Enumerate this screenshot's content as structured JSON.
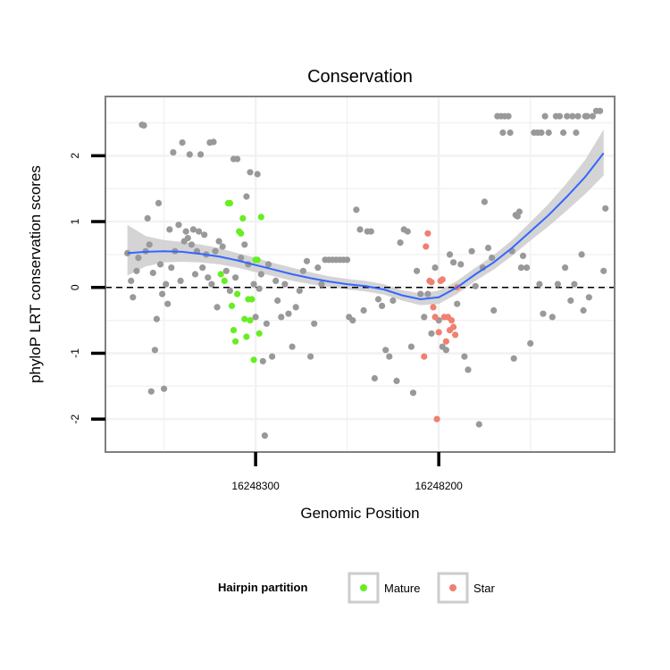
{
  "chart_data": {
    "type": "scatter",
    "title": "Conservation",
    "xlabel": "Genomic Position",
    "ylabel": "phyloP LRT conservation scores",
    "x_reversed": true,
    "xlim": [
      16248382,
      16248104
    ],
    "ylim": [
      -2.5,
      2.9
    ],
    "x_ticks": [
      16248300,
      16248200
    ],
    "x_tick_labels": [
      "16248300",
      "16248200"
    ],
    "y_ticks": [
      -2,
      -1,
      0,
      1,
      2
    ],
    "y_tick_labels": [
      "-2",
      "-1",
      "0",
      "1",
      "2"
    ],
    "grid": true,
    "reference_line": 0,
    "colors": {
      "other": "#999999",
      "Mature": "#66ee22",
      "Star": "#f08070",
      "smooth": "#3366ff",
      "band": "#cccccc",
      "panel_border": "#7f7f7f",
      "grid": "#f2f2f2"
    },
    "legend": {
      "title": "Hairpin partition",
      "position": "bottom",
      "entries": [
        "Mature",
        "Star"
      ]
    },
    "series": [
      {
        "group": "other",
        "points": [
          [
            16248370,
            0.52
          ],
          [
            16248368,
            0.1
          ],
          [
            16248367,
            -0.15
          ],
          [
            16248365,
            0.25
          ],
          [
            16248364,
            0.45
          ],
          [
            16248362,
            2.47
          ],
          [
            16248361,
            2.46
          ],
          [
            16248360,
            0.55
          ],
          [
            16248359,
            1.05
          ],
          [
            16248358,
            0.65
          ],
          [
            16248357,
            -1.58
          ],
          [
            16248356,
            0.22
          ],
          [
            16248355,
            -0.95
          ],
          [
            16248354,
            -0.48
          ],
          [
            16248353,
            1.28
          ],
          [
            16248352,
            0.35
          ],
          [
            16248351,
            -0.1
          ],
          [
            16248350,
            -1.54
          ],
          [
            16248349,
            0.05
          ],
          [
            16248348,
            -0.25
          ],
          [
            16248347,
            0.88
          ],
          [
            16248346,
            0.3
          ],
          [
            16248345,
            2.05
          ],
          [
            16248344,
            0.55
          ],
          [
            16248342,
            0.95
          ],
          [
            16248341,
            0.1
          ],
          [
            16248340,
            2.2
          ],
          [
            16248339,
            0.7
          ],
          [
            16248338,
            0.85
          ],
          [
            16248337,
            0.75
          ],
          [
            16248336,
            2.02
          ],
          [
            16248335,
            0.65
          ],
          [
            16248334,
            0.88
          ],
          [
            16248333,
            0.2
          ],
          [
            16248332,
            0.55
          ],
          [
            16248331,
            0.85
          ],
          [
            16248330,
            2.02
          ],
          [
            16248329,
            0.3
          ],
          [
            16248328,
            0.8
          ],
          [
            16248327,
            0.5
          ],
          [
            16248326,
            0.15
          ],
          [
            16248325,
            2.2
          ],
          [
            16248324,
            0.05
          ],
          [
            16248323,
            2.21
          ],
          [
            16248322,
            0.55
          ],
          [
            16248321,
            -0.3
          ],
          [
            16248320,
            0.7
          ],
          [
            16248318,
            0.62
          ],
          [
            16248316,
            0.25
          ],
          [
            16248314,
            -0.05
          ],
          [
            16248312,
            1.95
          ],
          [
            16248311,
            0.15
          ],
          [
            16248310,
            1.95
          ],
          [
            16248308,
            0.45
          ],
          [
            16248306,
            0.65
          ],
          [
            16248305,
            1.38
          ],
          [
            16248304,
            0.35
          ],
          [
            16248303,
            1.75
          ],
          [
            16248301,
            0.05
          ],
          [
            16248300,
            -0.45
          ],
          [
            16248299,
            1.72
          ],
          [
            16248298,
            -0.02
          ],
          [
            16248297,
            0.2
          ],
          [
            16248296,
            -1.12
          ],
          [
            16248295,
            -2.25
          ],
          [
            16248294,
            -0.55
          ],
          [
            16248293,
            0.35
          ],
          [
            16248291,
            -1.05
          ],
          [
            16248289,
            0.1
          ],
          [
            16248288,
            -0.2
          ],
          [
            16248286,
            -0.45
          ],
          [
            16248284,
            0.05
          ],
          [
            16248282,
            -0.4
          ],
          [
            16248280,
            -0.9
          ],
          [
            16248278,
            -0.3
          ],
          [
            16248276,
            -0.05
          ],
          [
            16248274,
            0.25
          ],
          [
            16248272,
            0.4
          ],
          [
            16248270,
            -1.05
          ],
          [
            16248268,
            -0.55
          ],
          [
            16248266,
            0.3
          ],
          [
            16248264,
            0.05
          ],
          [
            16248262,
            0.42
          ],
          [
            16248260,
            0.42
          ],
          [
            16248258,
            0.42
          ],
          [
            16248256,
            0.42
          ],
          [
            16248254,
            0.42
          ],
          [
            16248252,
            0.42
          ],
          [
            16248250,
            0.42
          ],
          [
            16248249,
            -0.45
          ],
          [
            16248247,
            -0.5
          ],
          [
            16248245,
            1.18
          ],
          [
            16248243,
            0.88
          ],
          [
            16248241,
            -0.35
          ],
          [
            16248239,
            0.85
          ],
          [
            16248237,
            0.85
          ],
          [
            16248235,
            -1.38
          ],
          [
            16248233,
            -0.18
          ],
          [
            16248231,
            -0.28
          ],
          [
            16248229,
            -0.95
          ],
          [
            16248227,
            -1.05
          ],
          [
            16248225,
            -0.2
          ],
          [
            16248223,
            -1.42
          ],
          [
            16248221,
            0.68
          ],
          [
            16248219,
            0.88
          ],
          [
            16248217,
            0.85
          ],
          [
            16248215,
            -0.9
          ],
          [
            16248214,
            -1.6
          ],
          [
            16248212,
            0.25
          ],
          [
            16248210,
            -0.1
          ],
          [
            16248208,
            -0.45
          ],
          [
            16248206,
            -0.1
          ],
          [
            16248204,
            -0.7
          ],
          [
            16248202,
            0.3
          ],
          [
            16248200,
            -0.5
          ],
          [
            16248198,
            -0.9
          ],
          [
            16248196,
            -0.95
          ],
          [
            16248194,
            0.5
          ],
          [
            16248192,
            0.38
          ],
          [
            16248190,
            -0.25
          ],
          [
            16248188,
            0.35
          ],
          [
            16248186,
            -1.05
          ],
          [
            16248184,
            -1.25
          ],
          [
            16248182,
            0.55
          ],
          [
            16248180,
            0.02
          ],
          [
            16248178,
            -2.08
          ],
          [
            16248176,
            0.3
          ],
          [
            16248175,
            1.3
          ],
          [
            16248173,
            0.6
          ],
          [
            16248171,
            0.45
          ],
          [
            16248170,
            -0.35
          ],
          [
            16248168,
            2.6
          ],
          [
            16248166,
            2.6
          ],
          [
            16248165,
            2.35
          ],
          [
            16248164,
            2.6
          ],
          [
            16248162,
            2.6
          ],
          [
            16248161,
            2.35
          ],
          [
            16248160,
            0.55
          ],
          [
            16248159,
            -1.08
          ],
          [
            16248158,
            1.1
          ],
          [
            16248157,
            1.08
          ],
          [
            16248156,
            1.15
          ],
          [
            16248155,
            0.3
          ],
          [
            16248154,
            0.48
          ],
          [
            16248152,
            0.3
          ],
          [
            16248150,
            -0.85
          ],
          [
            16248148,
            2.35
          ],
          [
            16248146,
            2.35
          ],
          [
            16248145,
            0.05
          ],
          [
            16248144,
            2.35
          ],
          [
            16248143,
            -0.4
          ],
          [
            16248142,
            2.6
          ],
          [
            16248140,
            2.35
          ],
          [
            16248138,
            -0.45
          ],
          [
            16248136,
            2.6
          ],
          [
            16248135,
            0.05
          ],
          [
            16248134,
            2.6
          ],
          [
            16248132,
            2.35
          ],
          [
            16248131,
            0.3
          ],
          [
            16248130,
            2.6
          ],
          [
            16248128,
            -0.2
          ],
          [
            16248127,
            2.6
          ],
          [
            16248126,
            0.05
          ],
          [
            16248125,
            2.35
          ],
          [
            16248124,
            2.6
          ],
          [
            16248122,
            0.5
          ],
          [
            16248121,
            -0.35
          ],
          [
            16248120,
            2.6
          ],
          [
            16248119,
            2.6
          ],
          [
            16248118,
            -0.15
          ],
          [
            16248116,
            2.6
          ],
          [
            16248114,
            2.68
          ],
          [
            16248112,
            2.68
          ],
          [
            16248110,
            0.25
          ],
          [
            16248109,
            1.2
          ]
        ]
      },
      {
        "group": "Mature",
        "name": "Mature",
        "points": [
          [
            16248319,
            0.2
          ],
          [
            16248317,
            0.1
          ],
          [
            16248315,
            1.28
          ],
          [
            16248314,
            1.28
          ],
          [
            16248313,
            -0.28
          ],
          [
            16248312,
            -0.65
          ],
          [
            16248311,
            -0.82
          ],
          [
            16248310,
            -0.1
          ],
          [
            16248309,
            0.85
          ],
          [
            16248308,
            0.82
          ],
          [
            16248307,
            1.05
          ],
          [
            16248306,
            -0.48
          ],
          [
            16248305,
            -0.75
          ],
          [
            16248304,
            -0.18
          ],
          [
            16248303,
            -0.5
          ],
          [
            16248302,
            -0.18
          ],
          [
            16248301,
            -1.1
          ],
          [
            16248300,
            0.42
          ],
          [
            16248299,
            0.42
          ],
          [
            16248298,
            -0.7
          ],
          [
            16248297,
            1.07
          ]
        ]
      },
      {
        "group": "Star",
        "name": "Star",
        "points": [
          [
            16248208,
            -1.05
          ],
          [
            16248207,
            0.62
          ],
          [
            16248206,
            0.82
          ],
          [
            16248205,
            0.1
          ],
          [
            16248204,
            0.08
          ],
          [
            16248203,
            -0.3
          ],
          [
            16248202,
            -0.45
          ],
          [
            16248201,
            -2.0
          ],
          [
            16248200,
            -0.68
          ],
          [
            16248199,
            0.1
          ],
          [
            16248198,
            0.12
          ],
          [
            16248197,
            -0.45
          ],
          [
            16248196,
            -0.82
          ],
          [
            16248195,
            -0.45
          ],
          [
            16248194,
            -0.65
          ],
          [
            16248193,
            -0.5
          ],
          [
            16248192,
            -0.6
          ],
          [
            16248191,
            -0.72
          ],
          [
            16248190,
            0.0
          ]
        ]
      }
    ],
    "smooth": {
      "x": [
        16248370,
        16248360,
        16248350,
        16248340,
        16248330,
        16248320,
        16248310,
        16248300,
        16248290,
        16248280,
        16248270,
        16248260,
        16248250,
        16248240,
        16248230,
        16248220,
        16248210,
        16248200,
        16248190,
        16248180,
        16248170,
        16248160,
        16248150,
        16248140,
        16248130,
        16248120,
        16248110
      ],
      "y": [
        0.52,
        0.54,
        0.55,
        0.54,
        0.51,
        0.47,
        0.41,
        0.34,
        0.27,
        0.2,
        0.14,
        0.09,
        0.05,
        0.02,
        -0.03,
        -0.12,
        -0.18,
        -0.15,
        0.0,
        0.2,
        0.38,
        0.6,
        0.85,
        1.1,
        1.38,
        1.68,
        2.04
      ],
      "lower": [
        0.18,
        0.32,
        0.38,
        0.39,
        0.38,
        0.35,
        0.3,
        0.23,
        0.17,
        0.1,
        0.05,
        0.01,
        -0.03,
        -0.06,
        -0.11,
        -0.2,
        -0.27,
        -0.25,
        -0.1,
        0.1,
        0.27,
        0.48,
        0.71,
        0.93,
        1.17,
        1.42,
        1.7
      ],
      "upper": [
        0.95,
        0.78,
        0.72,
        0.69,
        0.65,
        0.6,
        0.52,
        0.45,
        0.37,
        0.3,
        0.23,
        0.17,
        0.13,
        0.1,
        0.05,
        -0.04,
        -0.09,
        -0.05,
        0.1,
        0.3,
        0.49,
        0.72,
        0.99,
        1.27,
        1.59,
        1.94,
        2.4
      ]
    }
  }
}
